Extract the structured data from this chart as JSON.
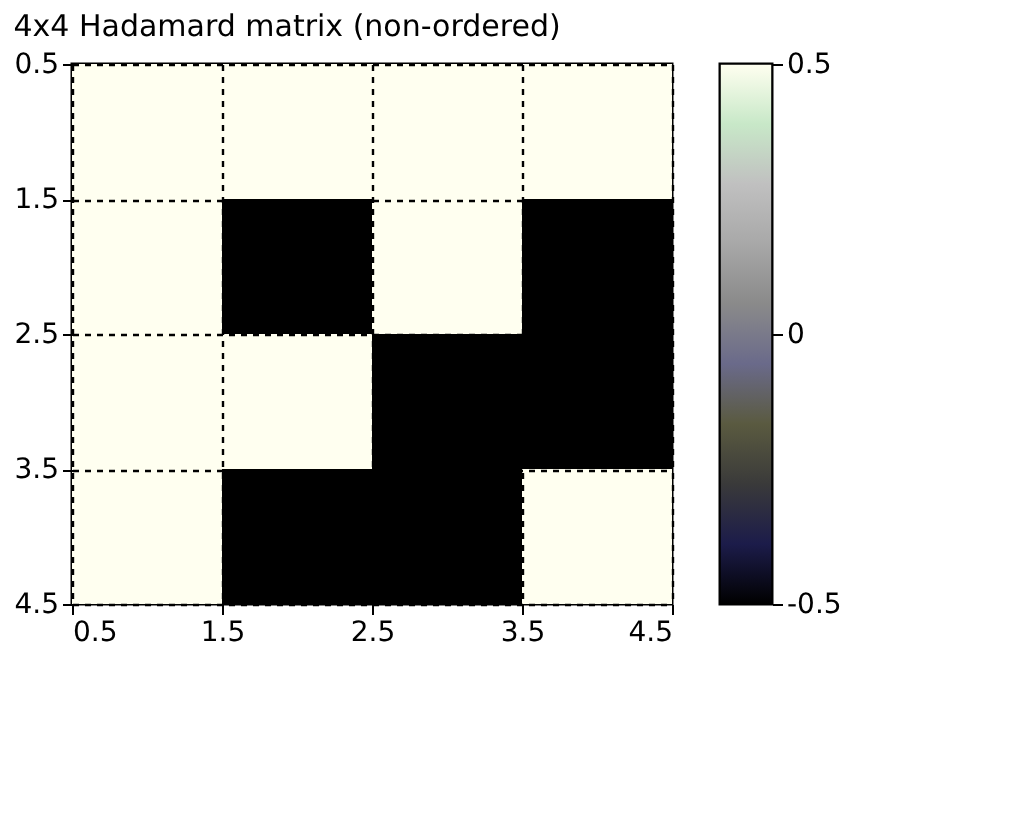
{
  "chart_data": {
    "type": "heatmap",
    "title": "4x4 Hadamard matrix (non-ordered)",
    "x": [
      1,
      2,
      3,
      4
    ],
    "y": [
      1,
      2,
      3,
      4
    ],
    "cells": [
      [
        0.5,
        0.5,
        0.5,
        0.5
      ],
      [
        0.5,
        -0.5,
        0.5,
        -0.5
      ],
      [
        0.5,
        0.5,
        -0.5,
        -0.5
      ],
      [
        0.5,
        -0.5,
        -0.5,
        0.5
      ]
    ],
    "xlim": [
      0.5,
      4.5
    ],
    "xticks": [
      0.5,
      1.5,
      2.5,
      3.5,
      4.5
    ],
    "ylim": [
      4.5,
      0.5
    ],
    "yticks": [
      0.5,
      1.5,
      2.5,
      3.5,
      4.5
    ],
    "clim": [
      -0.5,
      0.5
    ],
    "cticks": [
      -0.5,
      0,
      0.5
    ],
    "grid": true,
    "line_style": "dashed"
  }
}
